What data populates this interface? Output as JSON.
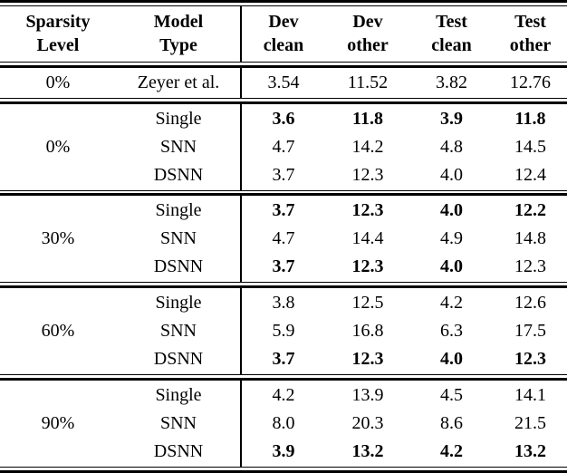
{
  "accent_colors": {
    "text": "#000000",
    "rule": "#000000",
    "background": "#ffffff"
  },
  "table": {
    "columns": [
      {
        "line1": "Sparsity",
        "line2": "Level"
      },
      {
        "line1": "Model",
        "line2": "Type"
      },
      {
        "line1": "Dev",
        "line2": "clean"
      },
      {
        "line1": "Dev",
        "line2": "other"
      },
      {
        "line1": "Test",
        "line2": "clean"
      },
      {
        "line1": "Test",
        "line2": "other"
      }
    ],
    "sections": [
      {
        "sparsity": "0%",
        "rows": [
          {
            "model": "Zeyer et al.",
            "values": [
              "3.54",
              "11.52",
              "3.82",
              "12.76"
            ],
            "bold": [
              false,
              false,
              false,
              false
            ]
          }
        ]
      },
      {
        "sparsity": "0%",
        "rows": [
          {
            "model": "Single",
            "values": [
              "3.6",
              "11.8",
              "3.9",
              "11.8"
            ],
            "bold": [
              true,
              true,
              true,
              true
            ]
          },
          {
            "model": "SNN",
            "values": [
              "4.7",
              "14.2",
              "4.8",
              "14.5"
            ],
            "bold": [
              false,
              false,
              false,
              false
            ]
          },
          {
            "model": "DSNN",
            "values": [
              "3.7",
              "12.3",
              "4.0",
              "12.4"
            ],
            "bold": [
              false,
              false,
              false,
              false
            ]
          }
        ]
      },
      {
        "sparsity": "30%",
        "rows": [
          {
            "model": "Single",
            "values": [
              "3.7",
              "12.3",
              "4.0",
              "12.2"
            ],
            "bold": [
              true,
              true,
              true,
              true
            ]
          },
          {
            "model": "SNN",
            "values": [
              "4.7",
              "14.4",
              "4.9",
              "14.8"
            ],
            "bold": [
              false,
              false,
              false,
              false
            ]
          },
          {
            "model": "DSNN",
            "values": [
              "3.7",
              "12.3",
              "4.0",
              "12.3"
            ],
            "bold": [
              true,
              true,
              true,
              false
            ]
          }
        ]
      },
      {
        "sparsity": "60%",
        "rows": [
          {
            "model": "Single",
            "values": [
              "3.8",
              "12.5",
              "4.2",
              "12.6"
            ],
            "bold": [
              false,
              false,
              false,
              false
            ]
          },
          {
            "model": "SNN",
            "values": [
              "5.9",
              "16.8",
              "6.3",
              "17.5"
            ],
            "bold": [
              false,
              false,
              false,
              false
            ]
          },
          {
            "model": "DSNN",
            "values": [
              "3.7",
              "12.3",
              "4.0",
              "12.3"
            ],
            "bold": [
              true,
              true,
              true,
              true
            ]
          }
        ]
      },
      {
        "sparsity": "90%",
        "rows": [
          {
            "model": "Single",
            "values": [
              "4.2",
              "13.9",
              "4.5",
              "14.1"
            ],
            "bold": [
              false,
              false,
              false,
              false
            ]
          },
          {
            "model": "SNN",
            "values": [
              "8.0",
              "20.3",
              "8.6",
              "21.5"
            ],
            "bold": [
              false,
              false,
              false,
              false
            ]
          },
          {
            "model": "DSNN",
            "values": [
              "3.9",
              "13.2",
              "4.2",
              "13.2"
            ],
            "bold": [
              true,
              true,
              true,
              true
            ]
          }
        ]
      }
    ]
  }
}
